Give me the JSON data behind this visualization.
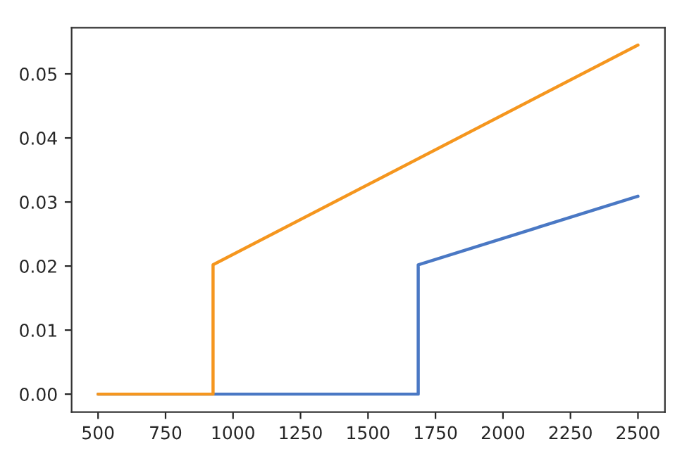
{
  "chart_data": {
    "type": "line",
    "xlim": [
      402,
      2600
    ],
    "xticks": [
      500,
      750,
      1000,
      1250,
      1500,
      1750,
      2000,
      2250,
      2500
    ],
    "ylim": [
      -0.0028,
      0.0572
    ],
    "yticks": [
      {
        "value": 0,
        "label": "0.00"
      },
      {
        "value": 0.01,
        "label": "0.01"
      },
      {
        "value": 0.02,
        "label": "0.02"
      },
      {
        "value": 0.03,
        "label": "0.03"
      },
      {
        "value": 0.04,
        "label": "0.04"
      },
      {
        "value": 0.05,
        "label": "0.05"
      }
    ],
    "grid": false,
    "marker": "none",
    "line_style": "solid",
    "series": [
      {
        "color": "#4a78c4",
        "x": [
          500,
          1686,
          1686,
          2500
        ],
        "values": [
          0,
          0,
          0.0202,
          0.0309
        ]
      },
      {
        "color": "#f5961e",
        "x": [
          500,
          926,
          926,
          2500
        ],
        "values": [
          0,
          0,
          0.0202,
          0.0545
        ]
      }
    ]
  }
}
